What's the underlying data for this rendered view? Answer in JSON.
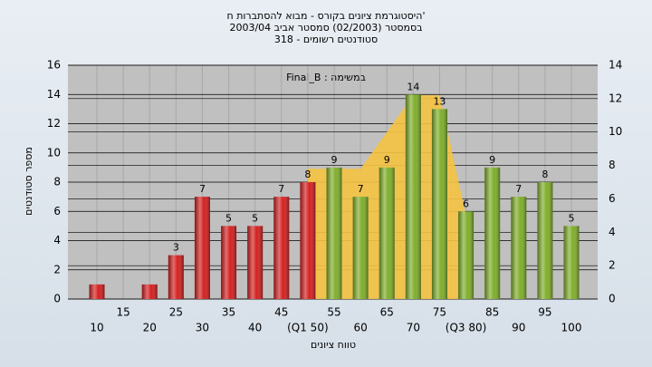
{
  "chart_data": {
    "type": "bar",
    "title": [
      "היסטוגרמת ציונים בקורס - מבוא להסתברות ח'",
      "בסמסטר  (02/2003)  סמסטר אביב 2003/04",
      "סטודנטים רשומים - 318"
    ],
    "annotation": "Final_B : במשימה",
    "y_label": "מספר סטודנטים",
    "x_label": "טווח ציונים",
    "categories": [
      "10",
      "15",
      "20",
      "25",
      "30",
      "35",
      "40",
      "45",
      "(Q1 50)",
      "55",
      "60",
      "65",
      "70",
      "75",
      "(Q3 80)",
      "85",
      "90",
      "95",
      "100"
    ],
    "series": [
      {
        "values": [
          1,
          0,
          1,
          3,
          7,
          5,
          5,
          7,
          8,
          9,
          7,
          9,
          14,
          13,
          6,
          9,
          7,
          8,
          5
        ],
        "value_labels": [
          null,
          null,
          null,
          "3",
          "7",
          "5",
          "5",
          "7",
          "8",
          "9",
          "7",
          "9",
          "14",
          "13",
          "6",
          "9",
          "7",
          "8",
          "5"
        ],
        "colors": [
          "#d42020",
          "#d42020",
          "#d42020",
          "#d42020",
          "#d42020",
          "#d42020",
          "#d42020",
          "#d42020",
          "#d42020",
          "#7fae2a",
          "#7fae2a",
          "#7fae2a",
          "#7fae2a",
          "#7fae2a",
          "#7fae2a",
          "#7fae2a",
          "#7fae2a",
          "#7fae2a",
          "#7fae2a"
        ]
      },
      {
        "axis": "y2",
        "color": "#f5c342",
        "values": [
          null,
          null,
          null,
          null,
          null,
          null,
          null,
          null,
          7.8,
          7.8,
          7.8,
          10,
          12.2,
          12.2,
          5,
          null,
          null,
          null,
          null
        ]
      }
    ],
    "ylim": [
      0,
      16
    ],
    "yticks": [
      0,
      2,
      4,
      6,
      8,
      10,
      12,
      14,
      16
    ],
    "y2lim": [
      0,
      14
    ],
    "y2ticks": [
      0,
      2,
      4,
      6,
      8,
      10,
      12,
      14
    ],
    "grid": true
  }
}
